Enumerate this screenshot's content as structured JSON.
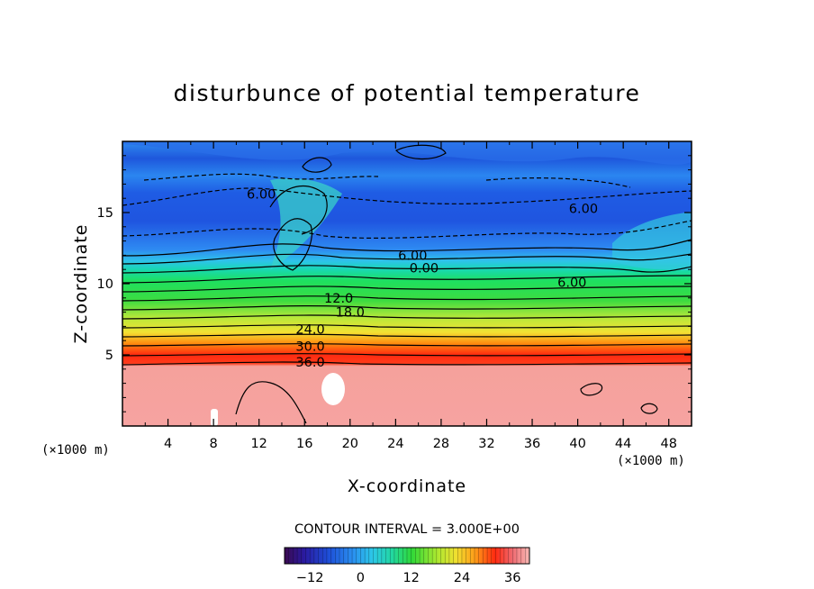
{
  "chart_data": {
    "type": "heatmap",
    "title": "disturbunce of potential temperature",
    "xlabel": "X-coordinate",
    "ylabel": "Z-coordinate",
    "x_unit": "(×1000 m)",
    "y_unit": "(×1000 m)",
    "xlim": [
      0,
      50
    ],
    "ylim": [
      0,
      20
    ],
    "x_ticks": [
      4,
      8,
      12,
      16,
      20,
      24,
      28,
      32,
      36,
      40,
      44,
      48
    ],
    "y_ticks": [
      5,
      10,
      15
    ],
    "contour_interval_text": "CONTOUR INTERVAL = 3.000E+00",
    "contour_interval": 3.0,
    "colorbar": {
      "min": -18,
      "max": 40,
      "ticks": [
        -12,
        0,
        12,
        24,
        36
      ]
    },
    "contour_labels": [
      {
        "text": "36.0",
        "x": 16.5,
        "z": 4.5
      },
      {
        "text": "30.0",
        "x": 16.5,
        "z": 5.6
      },
      {
        "text": "24.0",
        "x": 16.5,
        "z": 6.8
      },
      {
        "text": "18.0",
        "x": 20.0,
        "z": 8.0
      },
      {
        "text": "12.0",
        "x": 19.0,
        "z": 9.0
      },
      {
        "text": "0.00",
        "x": 26.5,
        "z": 11.1
      },
      {
        "text": "6.00",
        "x": 25.5,
        "z": 12.0
      },
      {
        "text": "6.00",
        "x": 39.5,
        "z": 10.1
      },
      {
        "text": "6.00",
        "x": 40.5,
        "z": 15.3
      },
      {
        "text": "6.00",
        "x": 12.2,
        "z": 16.3
      }
    ],
    "colors": {
      "dark_negative": "#1f4fd8",
      "negative": "#2e7df2",
      "zero": "#25c5e8",
      "low_positive": "#3ddc40",
      "mid_positive": "#e8e830",
      "high_positive": "#ff2a10",
      "max": "#f59a96"
    }
  }
}
